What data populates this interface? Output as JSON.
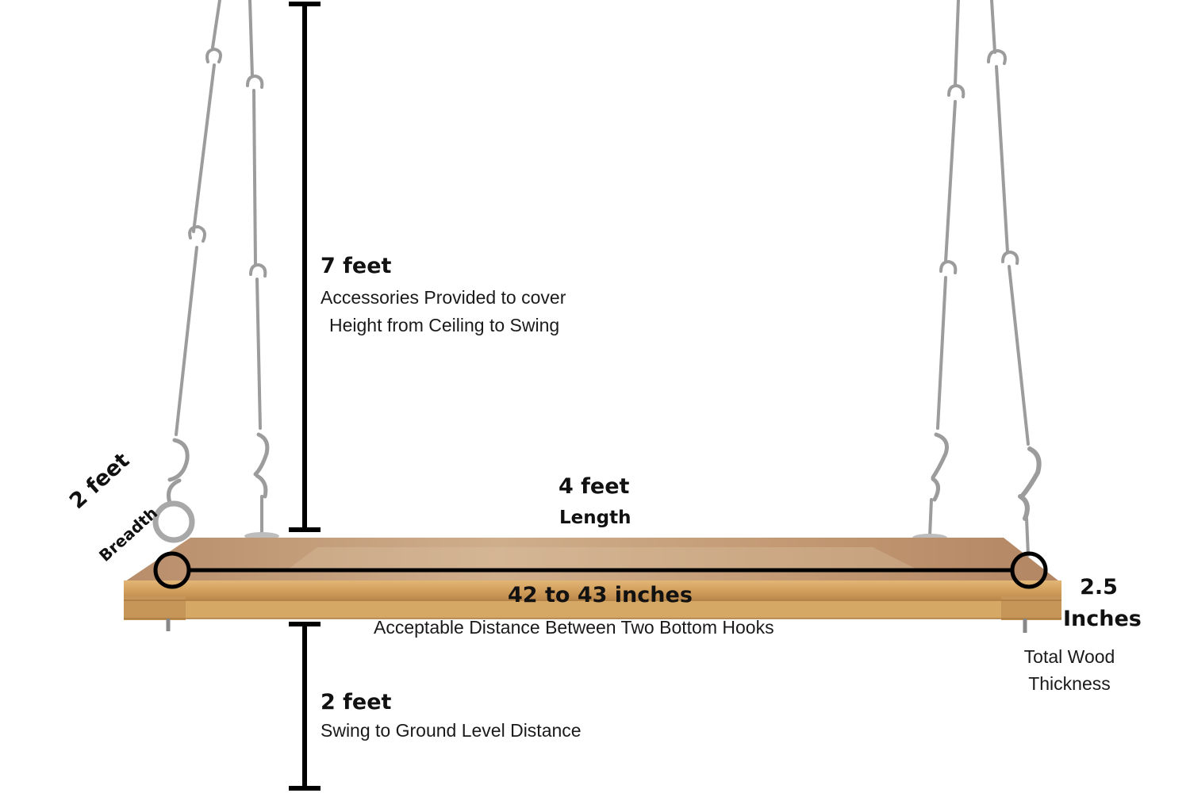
{
  "height_above": {
    "value": "7 feet",
    "line1": "Accessories Provided  to cover",
    "line2": "Height from Ceiling to Swing"
  },
  "length": {
    "value": "4 feet",
    "label": "Length"
  },
  "breadth": {
    "value": "2 feet",
    "label": "Breadth"
  },
  "hook_distance": {
    "value": "42 to 43 inches",
    "label": "Acceptable Distance Between Two Bottom Hooks"
  },
  "thickness": {
    "value_line1": "2.5",
    "value_line2": "Inches",
    "label_line1": "Total Wood",
    "label_line2": "Thickness"
  },
  "ground": {
    "value": "2 feet",
    "label": "Swing to Ground Level Distance"
  },
  "colors": {
    "wood_top": "#c9a27a",
    "wood_edge": "#d9ab6a",
    "chain": "#9a9a9a",
    "marker": "#000000"
  }
}
